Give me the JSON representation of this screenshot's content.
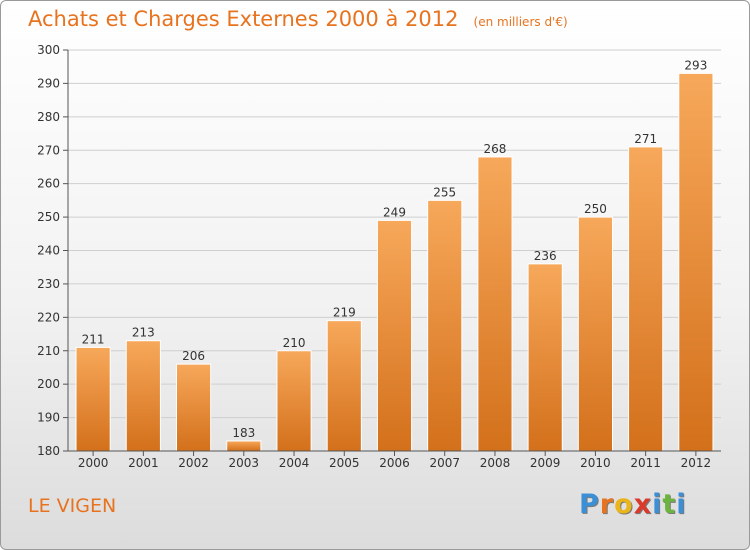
{
  "chart_data": {
    "type": "bar",
    "title": "Achats et Charges Externes 2000 à 2012",
    "subtitle": "(en milliers d'€)",
    "categories": [
      "2000",
      "2001",
      "2002",
      "2003",
      "2004",
      "2005",
      "2006",
      "2007",
      "2008",
      "2009",
      "2010",
      "2011",
      "2012"
    ],
    "values": [
      211,
      213,
      206,
      183,
      210,
      219,
      249,
      255,
      268,
      236,
      250,
      271,
      293
    ],
    "ylim": [
      180,
      300
    ],
    "yticks": [
      180,
      190,
      200,
      210,
      220,
      230,
      240,
      250,
      260,
      270,
      280,
      290,
      300
    ],
    "grid": true,
    "bar_color_top": "#f7a85a",
    "bar_color_bottom": "#d3701b"
  },
  "footer": {
    "commune": "LE VIGEN",
    "logo_letters": [
      "P",
      "r",
      "o",
      "x",
      "i",
      "t",
      "i"
    ],
    "logo_colors": [
      "#3a8fd6",
      "#e8731f",
      "#e9b51a",
      "#d93a2b",
      "#3a8fd6",
      "#6cb43f",
      "#3a8fd6"
    ]
  },
  "colors": {
    "title": "#e8731f",
    "grid": "#cfcfcf"
  }
}
